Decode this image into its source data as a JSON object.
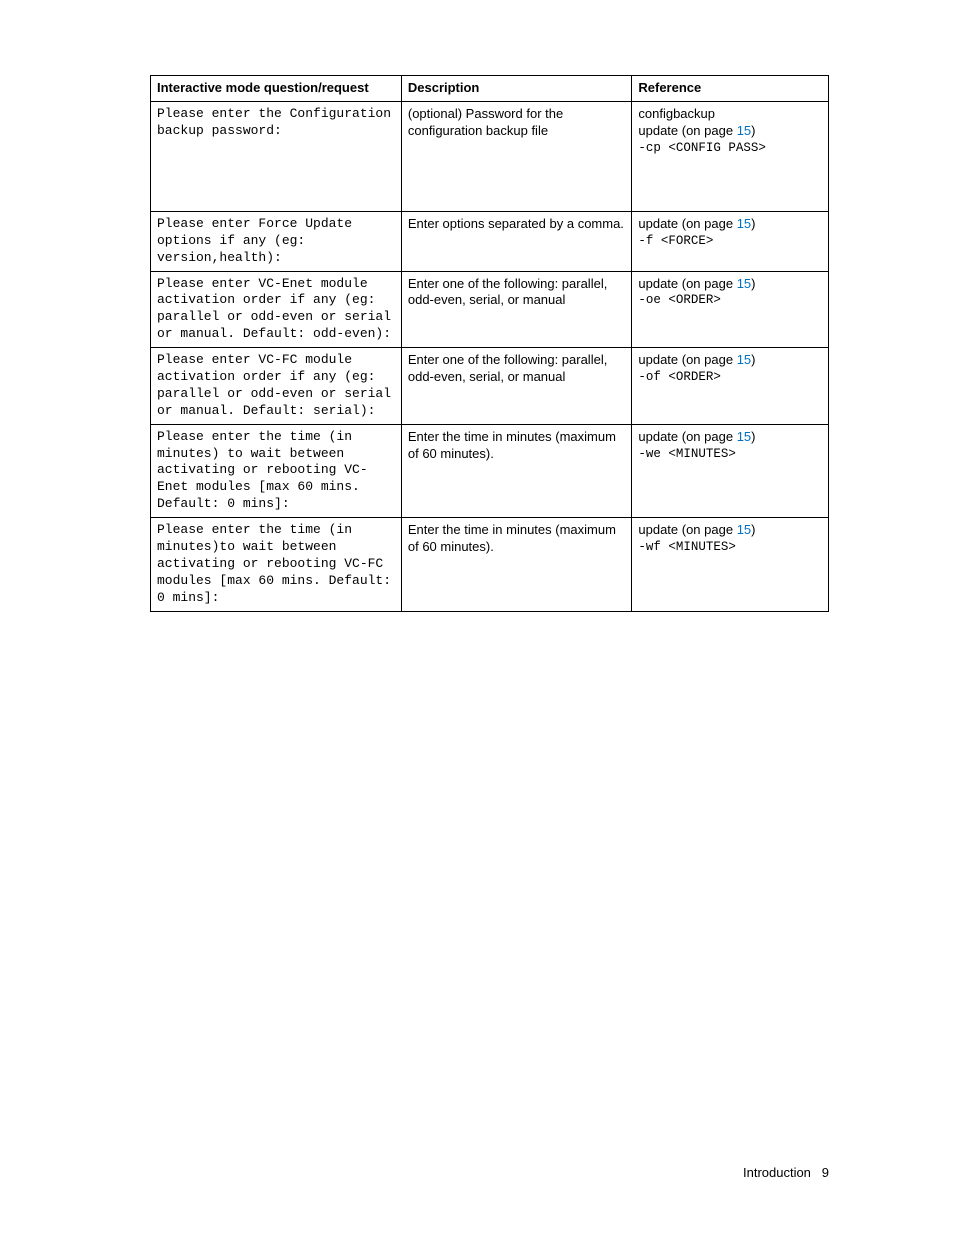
{
  "table": {
    "headers": {
      "question": "Interactive mode question/request",
      "description": "Description",
      "reference": "Reference"
    },
    "link_color": "#0070c0",
    "border_color": "#000000",
    "rows": [
      {
        "question": "Please enter the Configuration backup password:",
        "description": "(optional) Password for the configuration backup file",
        "ref_pre": "configbackup",
        "ref_link_prefix": "update (on page ",
        "ref_link_page": "15",
        "ref_link_suffix": ")",
        "ref_code": "-cp <CONFIG PASS>"
      },
      {
        "question": "Please enter Force Update options if any (eg: version,health):",
        "description": "Enter options separated by a comma.",
        "ref_pre": "",
        "ref_link_prefix": "update (on page ",
        "ref_link_page": "15",
        "ref_link_suffix": ")",
        "ref_code": "-f <FORCE>"
      },
      {
        "question": "Please enter VC-Enet module activation order if any (eg: parallel or odd-even or serial or manual. Default: odd-even):",
        "description": "Enter one of the following: parallel, odd-even, serial, or manual",
        "ref_pre": "",
        "ref_link_prefix": "update (on page ",
        "ref_link_page": "15",
        "ref_link_suffix": ")",
        "ref_code": "-oe <ORDER>"
      },
      {
        "question": "Please enter VC-FC module activation order if any (eg: parallel or odd-even or serial or manual. Default: serial):",
        "description": "Enter one of the following: parallel, odd-even, serial, or manual",
        "ref_pre": "",
        "ref_link_prefix": "update (on page ",
        "ref_link_page": "15",
        "ref_link_suffix": ")",
        "ref_code": "-of <ORDER>"
      },
      {
        "question": "Please enter the time (in minutes) to wait between activating or rebooting VC-Enet modules [max 60 mins. Default: 0 mins]:",
        "description": "Enter the time in minutes (maximum of 60 minutes).",
        "ref_pre": "",
        "ref_link_prefix": "update (on page ",
        "ref_link_page": "15",
        "ref_link_suffix": ")",
        "ref_code": "-we <MINUTES>"
      },
      {
        "question": "Please enter the time (in minutes)to wait between activating or rebooting VC-FC modules [max 60 mins. Default: 0 mins]:",
        "description": "Enter the time in minutes (maximum of 60 minutes).",
        "ref_pre": "",
        "ref_link_prefix": "update (on page ",
        "ref_link_page": "15",
        "ref_link_suffix": ")",
        "ref_code": "-wf <MINUTES>"
      }
    ]
  },
  "footer": {
    "section": "Introduction",
    "page": "9"
  }
}
